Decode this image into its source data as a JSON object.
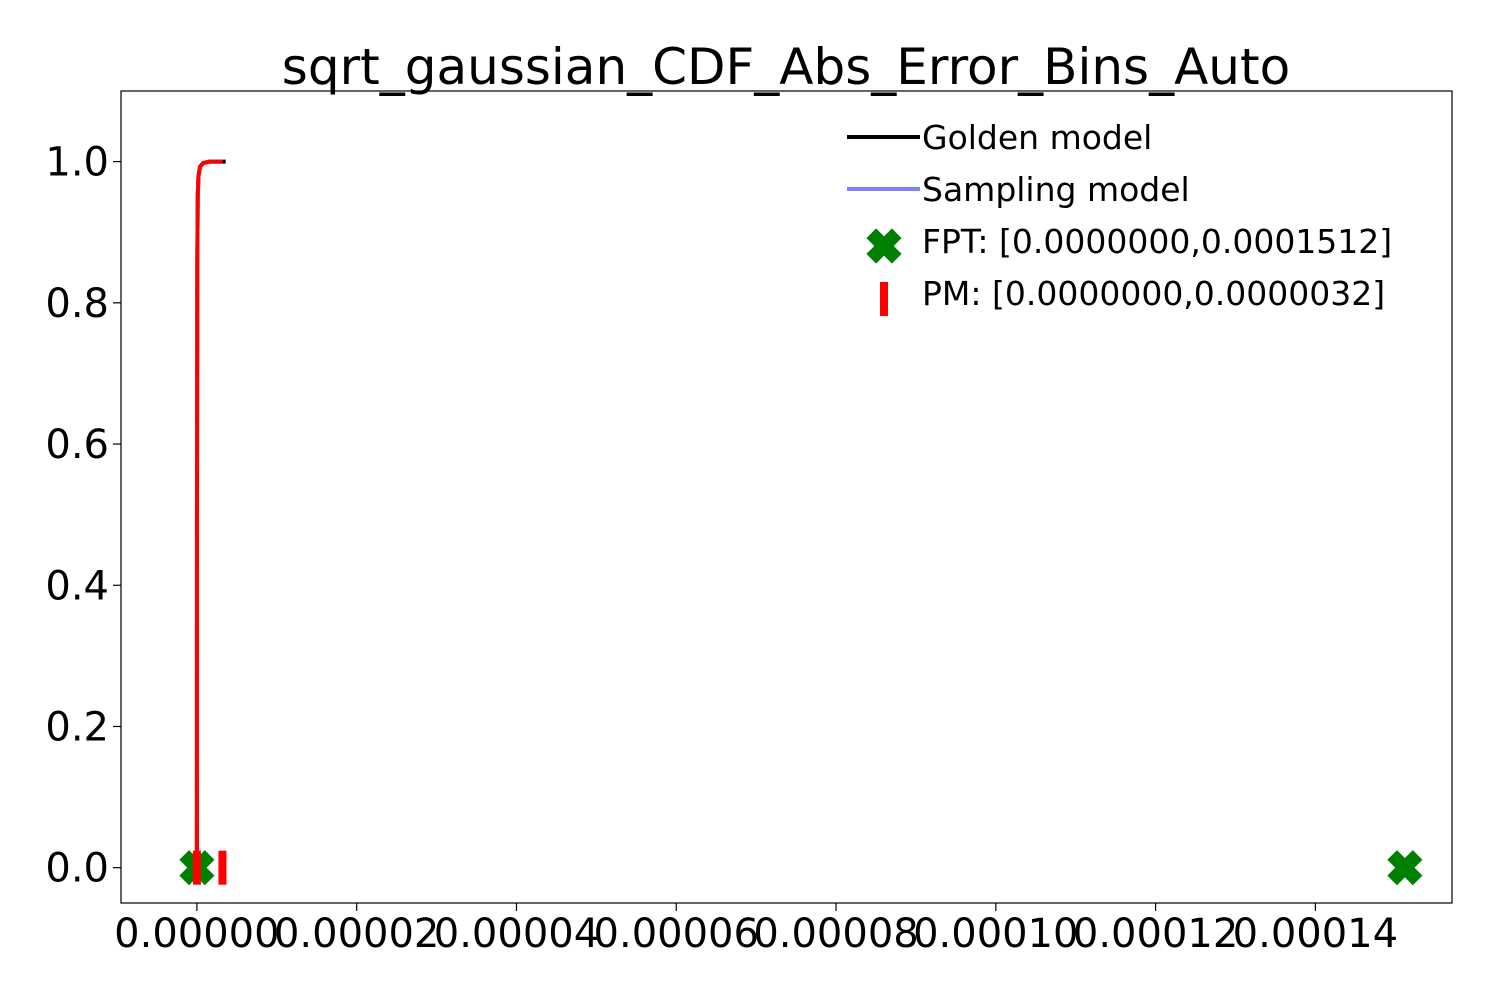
{
  "chart_data": {
    "type": "line",
    "title": "sqrt_gaussian_CDF_Abs_Error_Bins_Auto",
    "xlabel": "",
    "ylabel": "",
    "xlim": [
      -9.5e-06,
      0.0001571
    ],
    "ylim": [
      -0.05,
      1.1
    ],
    "grid": false,
    "legend_position": "top-right",
    "x_ticks": [
      {
        "value": 0.0,
        "label": "0.00000"
      },
      {
        "value": 2e-05,
        "label": "0.00002"
      },
      {
        "value": 4e-05,
        "label": "0.00004"
      },
      {
        "value": 6e-05,
        "label": "0.00006"
      },
      {
        "value": 8e-05,
        "label": "0.00008"
      },
      {
        "value": 0.0001,
        "label": "0.00010"
      },
      {
        "value": 0.00012,
        "label": "0.00012"
      },
      {
        "value": 0.00014,
        "label": "0.00014"
      }
    ],
    "y_ticks": [
      {
        "value": 0.0,
        "label": "0.0"
      },
      {
        "value": 0.2,
        "label": "0.2"
      },
      {
        "value": 0.4,
        "label": "0.4"
      },
      {
        "value": 0.6,
        "label": "0.6"
      },
      {
        "value": 0.8,
        "label": "0.8"
      },
      {
        "value": 1.0,
        "label": "1.0"
      }
    ],
    "series": [
      {
        "name": "Golden model",
        "kind": "line",
        "color": "#000000",
        "x": [
          0.0,
          1e-08,
          5e-08,
          1e-07,
          2e-07,
          4e-07,
          8e-07,
          1.6e-06,
          2.4e-06,
          3.6e-06
        ],
        "y": [
          0.0,
          0.5,
          0.85,
          0.95,
          0.98,
          0.993,
          0.998,
          1.0,
          1.0,
          1.0
        ]
      },
      {
        "name": "Sampling model",
        "kind": "line",
        "color": "#8080ff",
        "x": [
          0.0,
          1e-08,
          5e-08,
          1e-07,
          2e-07,
          4e-07,
          8e-07,
          1.6e-06,
          2.4e-06,
          3.2e-06
        ],
        "y": [
          0.0,
          0.5,
          0.85,
          0.95,
          0.98,
          0.993,
          0.998,
          1.0,
          1.0,
          1.0
        ]
      },
      {
        "name": "",
        "kind": "line",
        "color": "#ff0000",
        "x": [
          0.0,
          1e-08,
          5e-08,
          1e-07,
          2e-07,
          4e-07,
          8e-07,
          1.6e-06,
          2.4e-06,
          3.2e-06
        ],
        "y": [
          0.0,
          0.5,
          0.85,
          0.95,
          0.98,
          0.993,
          0.998,
          1.0,
          1.0,
          1.0
        ]
      },
      {
        "name": "FPT: [0.0000000,0.0001512]",
        "kind": "markers",
        "marker": "X",
        "color": "#008000",
        "x": [
          0.0,
          0.0001512
        ],
        "y": [
          0.0,
          0.0
        ]
      },
      {
        "name": "PM: [0.0000000,0.0000032]",
        "kind": "markers",
        "marker": "|",
        "color": "#ff0000",
        "x": [
          0.0,
          3.2e-06
        ],
        "y": [
          0.0,
          0.0
        ]
      }
    ],
    "legend": [
      {
        "label": "Golden model",
        "symbol": "line",
        "color": "#000000"
      },
      {
        "label": "Sampling model",
        "symbol": "line",
        "color": "#8080ff"
      },
      {
        "label": "FPT: [0.0000000,0.0001512]",
        "symbol": "X",
        "color": "#008000"
      },
      {
        "label": "PM: [0.0000000,0.0000032]",
        "symbol": "|",
        "color": "#ff0000"
      }
    ]
  }
}
